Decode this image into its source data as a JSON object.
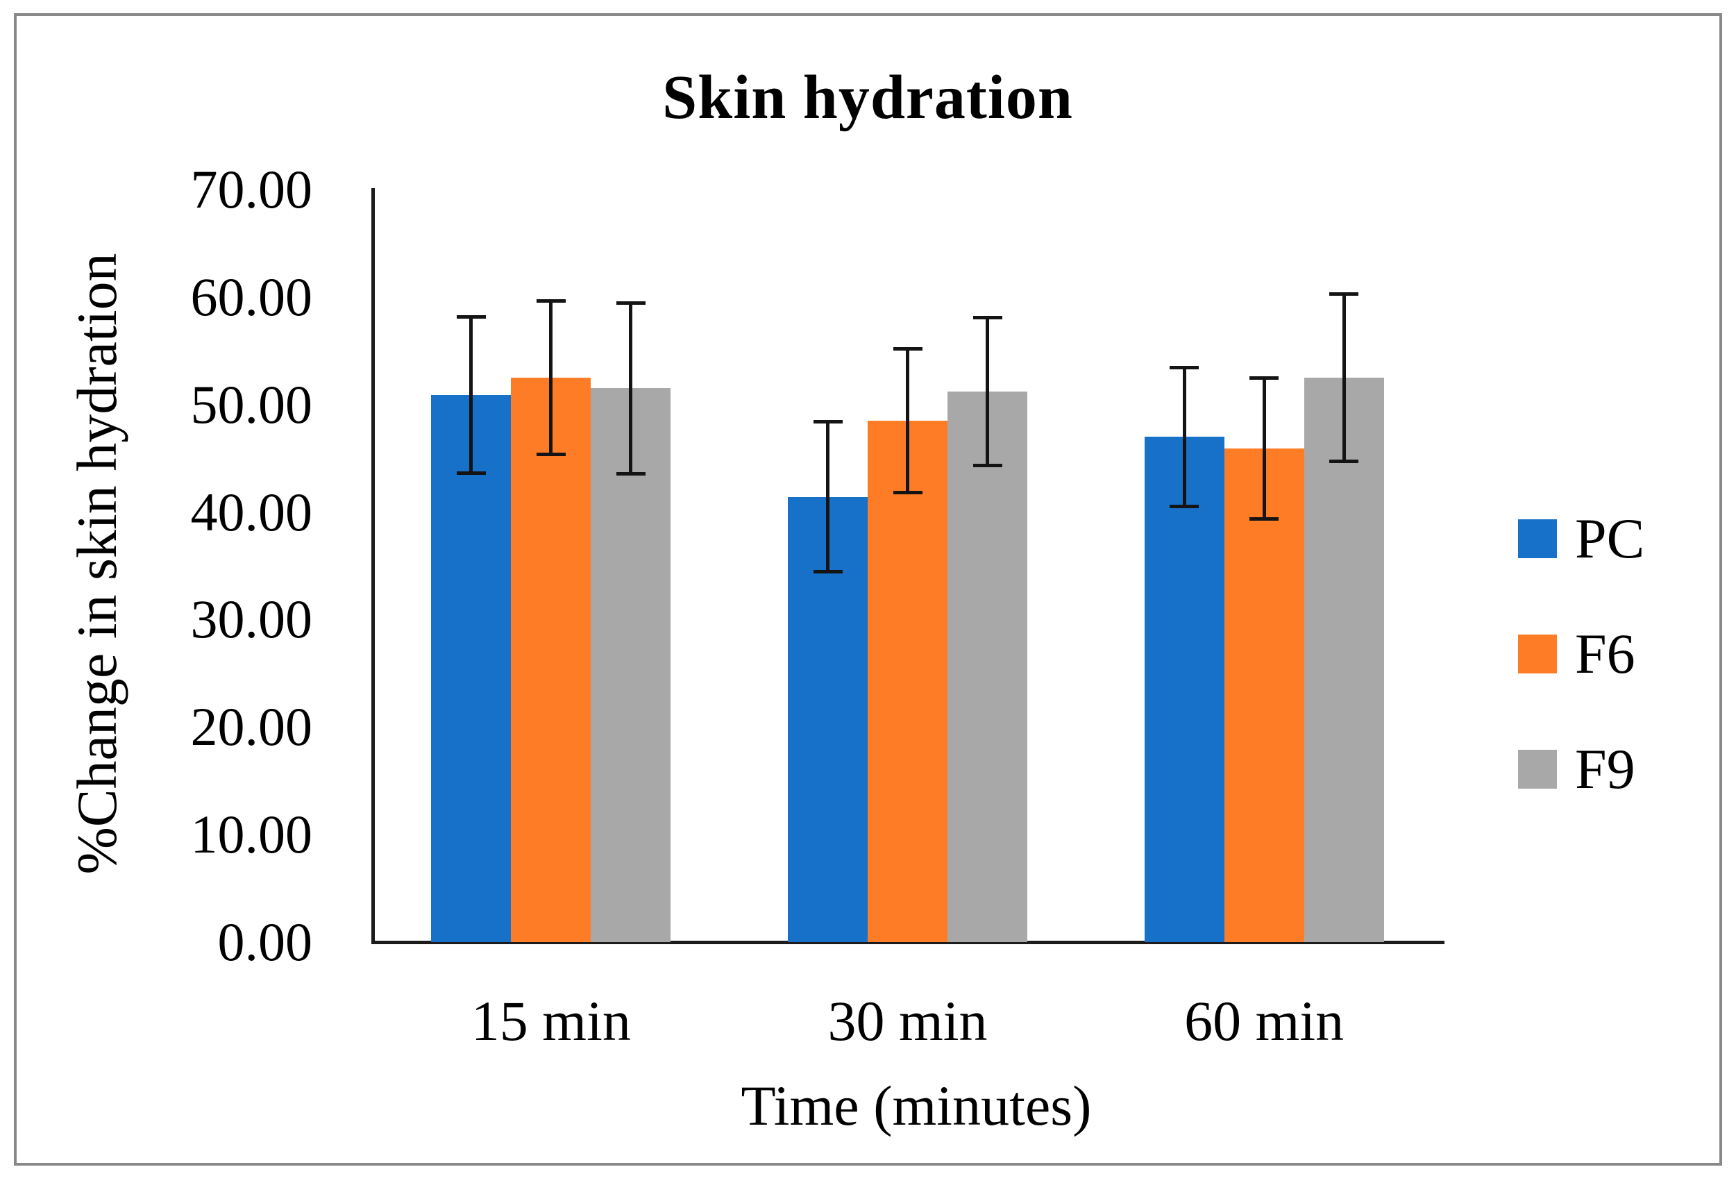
{
  "chart_data": {
    "type": "bar",
    "title": "Skin hydration",
    "xlabel": "Time (minutes)",
    "ylabel": "%Change in skin hydration",
    "categories": [
      "15 min",
      "30 min",
      "60 min"
    ],
    "series": [
      {
        "name": "PC",
        "color": "#1871C8",
        "values": [
          50.9,
          41.4,
          47.0
        ],
        "errors": [
          7.3,
          7.0,
          6.5
        ]
      },
      {
        "name": "F6",
        "color": "#FF7C26",
        "values": [
          52.5,
          48.5,
          45.9
        ],
        "errors": [
          7.2,
          6.7,
          6.6
        ]
      },
      {
        "name": "F9",
        "color": "#A8A8A8",
        "values": [
          51.5,
          51.2,
          52.5
        ],
        "errors": [
          8.0,
          6.9,
          7.8
        ]
      }
    ],
    "error_bars": true,
    "ylim": [
      0,
      70
    ],
    "ytick_step": 10,
    "ytick_labels": [
      "0.00",
      "10.00",
      "20.00",
      "30.00",
      "40.00",
      "50.00",
      "60.00",
      "70.00"
    ],
    "grid": false,
    "legend_position": "right",
    "frame_color": "#898989",
    "axis_color": "#1c1c1c"
  }
}
